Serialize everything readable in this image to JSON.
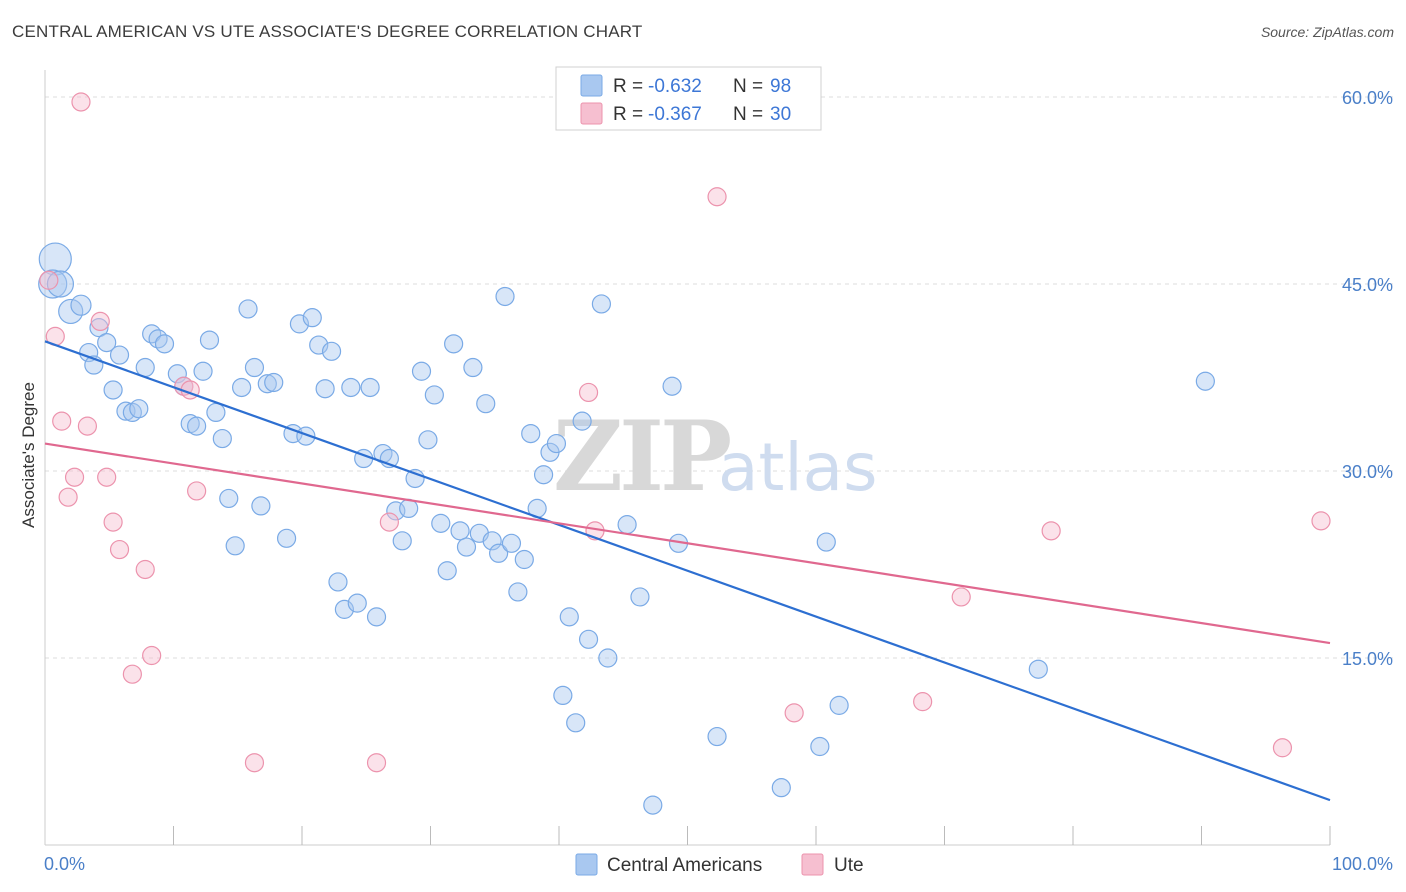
{
  "header": {
    "title": "CENTRAL AMERICAN VS UTE ASSOCIATE'S DEGREE CORRELATION CHART",
    "source": "Source: ZipAtlas.com"
  },
  "watermark": {
    "zip": "ZIP",
    "atlas": "atlas"
  },
  "legend": {
    "items": [
      {
        "r_label": "R =",
        "r_value": "-0.632",
        "n_label": "N =",
        "n_value": "98",
        "color": "#a9c8f0",
        "stroke": "#7aaae6"
      },
      {
        "r_label": "R =",
        "r_value": "-0.367",
        "n_label": "N =",
        "n_value": "30",
        "color": "#f6bfd0",
        "stroke": "#ec93ad"
      }
    ]
  },
  "bottom_legend": {
    "items": [
      {
        "label": "Central Americans",
        "color": "#a9c8f0",
        "stroke": "#7aaae6"
      },
      {
        "label": "Ute",
        "color": "#f6bfd0",
        "stroke": "#ec93ad"
      }
    ]
  },
  "chart_data": {
    "type": "scatter",
    "title": "CENTRAL AMERICAN VS UTE ASSOCIATE'S DEGREE CORRELATION CHART",
    "ylabel": "Associate's Degree",
    "xlabel": "",
    "xlim": [
      0,
      100
    ],
    "ylim": [
      0,
      60
    ],
    "x_tick_labels": [
      {
        "value": 0,
        "label": "0.0%"
      },
      {
        "value": 100,
        "label": "100.0%"
      }
    ],
    "x_minor_ticks": [
      10,
      20,
      30,
      40,
      50,
      60,
      70,
      80,
      90,
      100
    ],
    "y_ticks": [
      {
        "value": 15,
        "label": "15.0%"
      },
      {
        "value": 30,
        "label": "30.0%"
      },
      {
        "value": 45,
        "label": "45.0%"
      },
      {
        "value": 60,
        "label": "60.0%"
      }
    ],
    "grid": "horizontal-dashed",
    "legend_position": "top-center",
    "series": [
      {
        "name": "Central Americans",
        "color": "#7aaae6",
        "fill": "#a9c8f0",
        "trend": {
          "x": [
            0,
            100
          ],
          "y": [
            40.4,
            3.6
          ],
          "color": "#2d6fd1"
        },
        "points": [
          [
            0.8,
            47.0,
            16
          ],
          [
            0.6,
            45.0,
            14
          ],
          [
            1.2,
            45.0,
            13
          ],
          [
            2.0,
            42.8,
            12
          ],
          [
            2.8,
            43.3,
            10
          ],
          [
            4.2,
            41.5,
            9
          ],
          [
            3.4,
            39.5,
            9
          ],
          [
            3.8,
            38.5,
            9
          ],
          [
            4.8,
            40.3,
            9
          ],
          [
            5.8,
            39.3,
            9
          ],
          [
            5.3,
            36.5,
            9
          ],
          [
            6.3,
            34.8,
            9
          ],
          [
            6.8,
            34.7,
            9
          ],
          [
            7.3,
            35.0,
            9
          ],
          [
            7.8,
            38.3,
            9
          ],
          [
            8.3,
            41.0,
            9
          ],
          [
            8.8,
            40.6,
            9
          ],
          [
            9.3,
            40.2,
            9
          ],
          [
            10.3,
            37.8,
            9
          ],
          [
            10.8,
            36.8,
            9
          ],
          [
            11.3,
            33.8,
            9
          ],
          [
            11.8,
            33.6,
            9
          ],
          [
            12.3,
            38.0,
            9
          ],
          [
            12.8,
            40.5,
            9
          ],
          [
            13.3,
            34.7,
            9
          ],
          [
            13.8,
            32.6,
            9
          ],
          [
            14.3,
            27.8,
            9
          ],
          [
            14.8,
            24.0,
            9
          ],
          [
            15.3,
            36.7,
            9
          ],
          [
            15.8,
            43.0,
            9
          ],
          [
            16.3,
            38.3,
            9
          ],
          [
            16.8,
            27.2,
            9
          ],
          [
            17.3,
            37.0,
            9
          ],
          [
            17.8,
            37.1,
            9
          ],
          [
            18.8,
            24.6,
            9
          ],
          [
            19.3,
            33.0,
            9
          ],
          [
            19.8,
            41.8,
            9
          ],
          [
            20.3,
            32.8,
            9
          ],
          [
            20.8,
            42.3,
            9
          ],
          [
            21.3,
            40.1,
            9
          ],
          [
            21.8,
            36.6,
            9
          ],
          [
            22.3,
            39.6,
            9
          ],
          [
            22.8,
            21.1,
            9
          ],
          [
            23.3,
            18.9,
            9
          ],
          [
            23.8,
            36.7,
            9
          ],
          [
            24.3,
            19.4,
            9
          ],
          [
            24.8,
            31.0,
            9
          ],
          [
            25.3,
            36.7,
            9
          ],
          [
            25.8,
            18.3,
            9
          ],
          [
            26.3,
            31.4,
            9
          ],
          [
            26.8,
            31.0,
            9
          ],
          [
            27.3,
            26.8,
            9
          ],
          [
            27.8,
            24.4,
            9
          ],
          [
            28.3,
            27.0,
            9
          ],
          [
            28.8,
            29.4,
            9
          ],
          [
            29.3,
            38.0,
            9
          ],
          [
            29.8,
            32.5,
            9
          ],
          [
            30.3,
            36.1,
            9
          ],
          [
            30.8,
            25.8,
            9
          ],
          [
            31.3,
            22.0,
            9
          ],
          [
            31.8,
            40.2,
            9
          ],
          [
            32.3,
            25.2,
            9
          ],
          [
            32.8,
            23.9,
            9
          ],
          [
            33.3,
            38.3,
            9
          ],
          [
            33.8,
            25.0,
            9
          ],
          [
            34.3,
            35.4,
            9
          ],
          [
            34.8,
            24.4,
            9
          ],
          [
            35.3,
            23.4,
            9
          ],
          [
            35.8,
            44.0,
            9
          ],
          [
            36.3,
            24.2,
            9
          ],
          [
            36.8,
            20.3,
            9
          ],
          [
            37.3,
            22.9,
            9
          ],
          [
            37.8,
            33.0,
            9
          ],
          [
            38.3,
            27.0,
            9
          ],
          [
            38.8,
            29.7,
            9
          ],
          [
            39.3,
            31.5,
            9
          ],
          [
            39.8,
            32.2,
            9
          ],
          [
            40.3,
            12.0,
            9
          ],
          [
            40.8,
            18.3,
            9
          ],
          [
            41.3,
            9.8,
            9
          ],
          [
            41.8,
            34.0,
            9
          ],
          [
            42.3,
            16.5,
            9
          ],
          [
            43.3,
            43.4,
            9
          ],
          [
            43.8,
            15.0,
            9
          ],
          [
            45.3,
            25.7,
            9
          ],
          [
            46.3,
            19.9,
            9
          ],
          [
            47.3,
            3.2,
            9
          ],
          [
            48.8,
            36.8,
            9
          ],
          [
            49.3,
            24.2,
            9
          ],
          [
            52.3,
            8.7,
            9
          ],
          [
            57.3,
            4.6,
            9
          ],
          [
            60.3,
            7.9,
            9
          ],
          [
            60.8,
            24.3,
            9
          ],
          [
            61.8,
            11.2,
            9
          ],
          [
            77.3,
            14.1,
            9
          ],
          [
            90.3,
            37.2,
            9
          ]
        ]
      },
      {
        "name": "Ute",
        "color": "#ec93ad",
        "fill": "#f6bfd0",
        "trend": {
          "x": [
            0,
            100
          ],
          "y": [
            32.2,
            16.2
          ],
          "color": "#e0688f"
        },
        "points": [
          [
            0.3,
            45.3,
            9
          ],
          [
            0.8,
            40.8,
            9
          ],
          [
            1.3,
            34.0,
            9
          ],
          [
            1.8,
            27.9,
            9
          ],
          [
            2.3,
            29.5,
            9
          ],
          [
            2.8,
            59.6,
            9
          ],
          [
            3.3,
            33.6,
            9
          ],
          [
            4.3,
            42.0,
            9
          ],
          [
            4.8,
            29.5,
            9
          ],
          [
            5.3,
            25.9,
            9
          ],
          [
            5.8,
            23.7,
            9
          ],
          [
            6.8,
            13.7,
            9
          ],
          [
            7.8,
            22.1,
            9
          ],
          [
            8.3,
            15.2,
            9
          ],
          [
            10.8,
            36.8,
            9
          ],
          [
            11.3,
            36.5,
            9
          ],
          [
            11.8,
            28.4,
            9
          ],
          [
            16.3,
            6.6,
            9
          ],
          [
            25.8,
            6.6,
            9
          ],
          [
            26.8,
            25.9,
            9
          ],
          [
            42.8,
            25.2,
            9
          ],
          [
            42.3,
            36.3,
            9
          ],
          [
            52.3,
            52.0,
            9
          ],
          [
            58.3,
            10.6,
            9
          ],
          [
            68.3,
            11.5,
            9
          ],
          [
            71.3,
            19.9,
            9
          ],
          [
            78.3,
            25.2,
            9
          ],
          [
            96.3,
            7.8,
            9
          ],
          [
            99.3,
            26.0,
            9
          ]
        ]
      }
    ]
  }
}
